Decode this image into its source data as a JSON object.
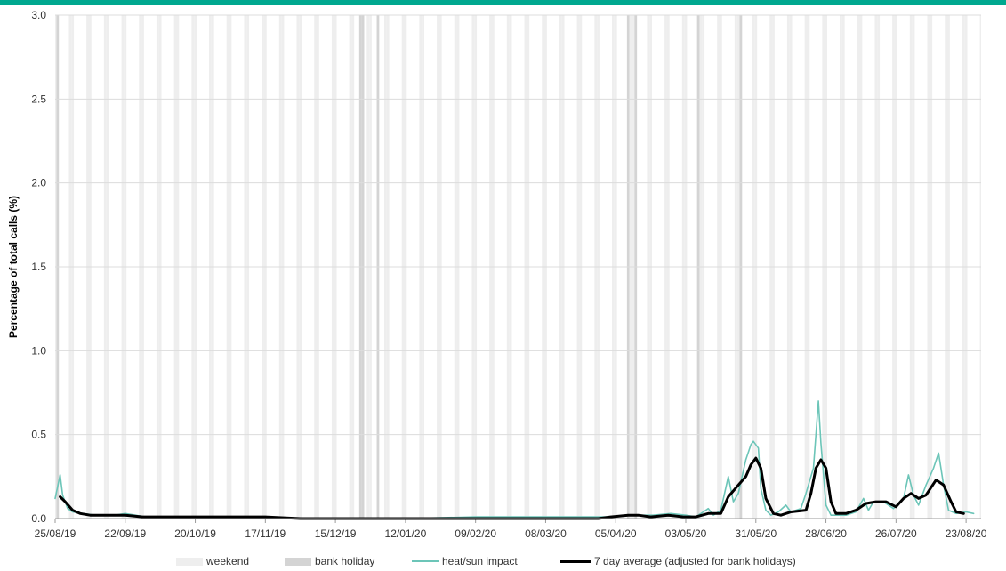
{
  "colors": {
    "top_bar": "#00a88f",
    "weekend": "#eeeeee",
    "bank_holiday": "#d4d4d4",
    "heat": "#6cc5b8",
    "avg": "#000000",
    "grid": "#dcdcdc",
    "axis": "#9a9a9a"
  },
  "chart_data": {
    "type": "line",
    "ylabel": "Percentage of total calls (%)",
    "ylim": [
      0,
      3.0
    ],
    "y_ticks": [
      "0.0",
      "0.5",
      "1.0",
      "1.5",
      "2.0",
      "2.5",
      "3.0"
    ],
    "x_range": [
      "2019-08-25",
      "2020-08-29"
    ],
    "x_ticks": [
      "25/08/19",
      "22/09/19",
      "20/10/19",
      "17/11/19",
      "15/12/19",
      "12/01/20",
      "09/02/20",
      "08/03/20",
      "05/04/20",
      "03/05/20",
      "31/05/20",
      "28/06/20",
      "26/07/20",
      "23/08/20"
    ],
    "grid": "horizontal",
    "legend_position": "bottom",
    "bands": {
      "weekend": "Saturdays and Sundays",
      "bank_holidays": [
        "2019-08-26",
        "2019-12-25",
        "2019-12-26",
        "2020-01-01",
        "2020-04-10",
        "2020-04-13",
        "2020-05-08",
        "2020-05-25"
      ]
    },
    "series": [
      {
        "name": "heat/sun impact",
        "key": "heat",
        "points": [
          [
            "2019-08-25",
            0.12
          ],
          [
            "2019-08-27",
            0.26
          ],
          [
            "2019-08-28",
            0.14
          ],
          [
            "2019-08-30",
            0.06
          ],
          [
            "2019-09-01",
            0.04
          ],
          [
            "2019-09-05",
            0.03
          ],
          [
            "2019-09-10",
            0.02
          ],
          [
            "2019-09-18",
            0.02
          ],
          [
            "2019-09-22",
            0.03
          ],
          [
            "2019-09-30",
            0.01
          ],
          [
            "2019-10-20",
            0.01
          ],
          [
            "2019-11-10",
            0.01
          ],
          [
            "2019-12-01",
            0.0
          ],
          [
            "2020-01-12",
            0.0
          ],
          [
            "2020-02-09",
            0.01
          ],
          [
            "2020-03-08",
            0.01
          ],
          [
            "2020-04-01",
            0.01
          ],
          [
            "2020-04-10",
            0.02
          ],
          [
            "2020-04-20",
            0.02
          ],
          [
            "2020-04-27",
            0.03
          ],
          [
            "2020-05-03",
            0.02
          ],
          [
            "2020-05-07",
            0.01
          ],
          [
            "2020-05-10",
            0.04
          ],
          [
            "2020-05-12",
            0.06
          ],
          [
            "2020-05-14",
            0.02
          ],
          [
            "2020-05-17",
            0.05
          ],
          [
            "2020-05-20",
            0.25
          ],
          [
            "2020-05-22",
            0.1
          ],
          [
            "2020-05-24",
            0.15
          ],
          [
            "2020-05-27",
            0.35
          ],
          [
            "2020-05-29",
            0.44
          ],
          [
            "2020-05-30",
            0.46
          ],
          [
            "2020-06-01",
            0.42
          ],
          [
            "2020-06-02",
            0.18
          ],
          [
            "2020-06-04",
            0.05
          ],
          [
            "2020-06-06",
            0.02
          ],
          [
            "2020-06-09",
            0.04
          ],
          [
            "2020-06-12",
            0.08
          ],
          [
            "2020-06-14",
            0.04
          ],
          [
            "2020-06-18",
            0.06
          ],
          [
            "2020-06-20",
            0.15
          ],
          [
            "2020-06-23",
            0.3
          ],
          [
            "2020-06-25",
            0.7
          ],
          [
            "2020-06-26",
            0.45
          ],
          [
            "2020-06-28",
            0.08
          ],
          [
            "2020-06-30",
            0.02
          ],
          [
            "2020-07-06",
            0.02
          ],
          [
            "2020-07-10",
            0.04
          ],
          [
            "2020-07-13",
            0.12
          ],
          [
            "2020-07-15",
            0.05
          ],
          [
            "2020-07-17",
            0.1
          ],
          [
            "2020-07-21",
            0.1
          ],
          [
            "2020-07-25",
            0.06
          ],
          [
            "2020-07-29",
            0.12
          ],
          [
            "2020-07-31",
            0.26
          ],
          [
            "2020-08-02",
            0.14
          ],
          [
            "2020-08-04",
            0.08
          ],
          [
            "2020-08-07",
            0.2
          ],
          [
            "2020-08-10",
            0.3
          ],
          [
            "2020-08-12",
            0.39
          ],
          [
            "2020-08-14",
            0.2
          ],
          [
            "2020-08-16",
            0.05
          ],
          [
            "2020-08-19",
            0.03
          ],
          [
            "2020-08-23",
            0.04
          ],
          [
            "2020-08-26",
            0.03
          ]
        ]
      },
      {
        "name": "7 day average (adjusted for bank holidays)",
        "key": "avg",
        "points": [
          [
            "2019-08-27",
            0.13
          ],
          [
            "2019-08-29",
            0.1
          ],
          [
            "2019-09-01",
            0.05
          ],
          [
            "2019-09-04",
            0.03
          ],
          [
            "2019-09-08",
            0.02
          ],
          [
            "2019-09-15",
            0.02
          ],
          [
            "2019-09-22",
            0.02
          ],
          [
            "2019-09-29",
            0.01
          ],
          [
            "2019-10-20",
            0.01
          ],
          [
            "2019-11-17",
            0.01
          ],
          [
            "2019-12-01",
            0.0
          ],
          [
            "2020-01-12",
            0.0
          ],
          [
            "2020-02-09",
            0.0
          ],
          [
            "2020-03-08",
            0.0
          ],
          [
            "2020-03-29",
            0.0
          ],
          [
            "2020-04-03",
            0.01
          ],
          [
            "2020-04-10",
            0.02
          ],
          [
            "2020-04-14",
            0.02
          ],
          [
            "2020-04-19",
            0.01
          ],
          [
            "2020-04-26",
            0.02
          ],
          [
            "2020-05-02",
            0.01
          ],
          [
            "2020-05-07",
            0.01
          ],
          [
            "2020-05-12",
            0.03
          ],
          [
            "2020-05-17",
            0.03
          ],
          [
            "2020-05-20",
            0.13
          ],
          [
            "2020-05-24",
            0.2
          ],
          [
            "2020-05-27",
            0.25
          ],
          [
            "2020-05-29",
            0.32
          ],
          [
            "2020-05-31",
            0.36
          ],
          [
            "2020-06-02",
            0.3
          ],
          [
            "2020-06-04",
            0.12
          ],
          [
            "2020-06-07",
            0.03
          ],
          [
            "2020-06-10",
            0.02
          ],
          [
            "2020-06-14",
            0.04
          ],
          [
            "2020-06-20",
            0.05
          ],
          [
            "2020-06-22",
            0.15
          ],
          [
            "2020-06-24",
            0.3
          ],
          [
            "2020-06-26",
            0.35
          ],
          [
            "2020-06-28",
            0.3
          ],
          [
            "2020-06-30",
            0.1
          ],
          [
            "2020-07-02",
            0.03
          ],
          [
            "2020-07-06",
            0.03
          ],
          [
            "2020-07-10",
            0.05
          ],
          [
            "2020-07-14",
            0.09
          ],
          [
            "2020-07-18",
            0.1
          ],
          [
            "2020-07-22",
            0.1
          ],
          [
            "2020-07-26",
            0.07
          ],
          [
            "2020-07-29",
            0.12
          ],
          [
            "2020-08-01",
            0.15
          ],
          [
            "2020-08-04",
            0.12
          ],
          [
            "2020-08-07",
            0.14
          ],
          [
            "2020-08-11",
            0.23
          ],
          [
            "2020-08-14",
            0.2
          ],
          [
            "2020-08-17",
            0.1
          ],
          [
            "2020-08-19",
            0.04
          ],
          [
            "2020-08-22",
            0.03
          ]
        ]
      }
    ]
  },
  "legend": {
    "weekend": "weekend",
    "bank_holiday": "bank holiday",
    "heat": "heat/sun impact",
    "avg": "7 day average (adjusted for bank holidays)"
  }
}
